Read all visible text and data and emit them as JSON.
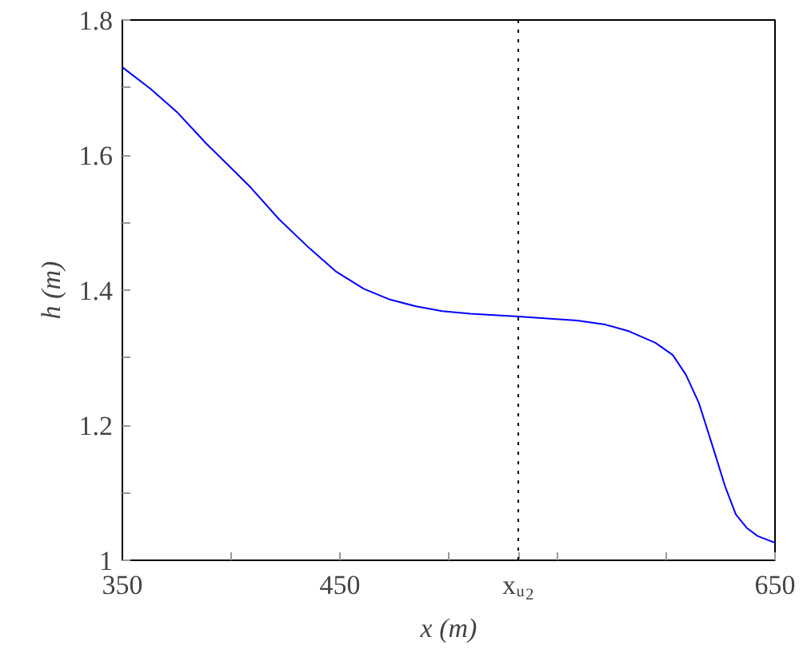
{
  "chart_data": {
    "type": "line",
    "xlabel": "x (m)",
    "ylabel": "h (m)",
    "xlim": [
      350,
      650
    ],
    "ylim": [
      1,
      1.8
    ],
    "xticks": [
      350,
      {
        "value": 400,
        "label": null
      },
      450,
      {
        "value": 500,
        "label": null
      },
      {
        "value": 532,
        "label": "xᵤ₂"
      },
      {
        "value": 550,
        "label": null
      },
      {
        "value": 600,
        "label": null
      },
      650
    ],
    "yticks": [
      1,
      {
        "value": 1.1,
        "label": null
      },
      1.2,
      {
        "value": 1.3,
        "label": null
      },
      1.4,
      {
        "value": 1.5,
        "label": null
      },
      1.6,
      {
        "value": 1.7,
        "label": null
      },
      1.8
    ],
    "grid": false,
    "marker": "none",
    "line_style": "solid",
    "ref_lines": [
      {
        "axis": "x",
        "value": 532,
        "color": "#000000",
        "line_style": "dotted"
      }
    ],
    "series": [
      {
        "color": "#0000ff",
        "x": [
          350,
          363,
          375,
          388,
          409,
          422,
          436,
          448,
          461,
          473,
          485,
          497,
          510,
          532,
          559,
          572,
          583,
          595,
          603,
          609,
          615,
          622,
          627,
          632,
          637,
          642,
          650
        ],
        "values": [
          1.73,
          1.698,
          1.664,
          1.619,
          1.552,
          1.505,
          1.462,
          1.428,
          1.402,
          1.386,
          1.376,
          1.369,
          1.365,
          1.361,
          1.355,
          1.349,
          1.339,
          1.322,
          1.304,
          1.275,
          1.233,
          1.162,
          1.11,
          1.068,
          1.048,
          1.036,
          1.026
        ]
      }
    ]
  }
}
